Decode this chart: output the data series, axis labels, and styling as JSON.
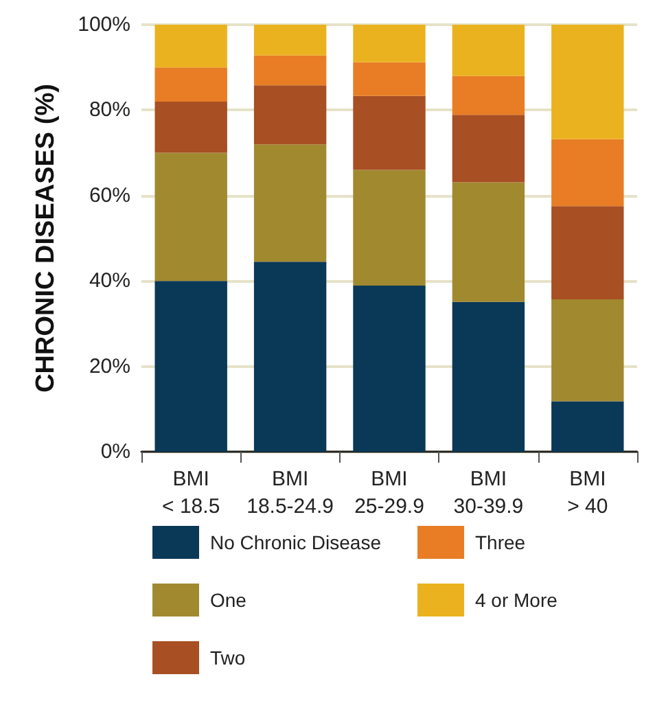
{
  "chart_data": {
    "type": "bar",
    "stacked": true,
    "ylabel": "CHRONIC DISEASES (%)",
    "categories": [
      "BMI\n< 18.5",
      "BMI\n18.5-24.9",
      "BMI\n25-29.9",
      "BMI\n30-39.9",
      "BMI\n> 40"
    ],
    "series": [
      {
        "name": "No Chronic Disease",
        "color": "#0a3857",
        "values": [
          40,
          44.5,
          38.9,
          35.1,
          11.8
        ]
      },
      {
        "name": "One",
        "color": "#a18930",
        "values": [
          30,
          27.5,
          27.1,
          28,
          23.9
        ]
      },
      {
        "name": "Two",
        "color": "#a84f24",
        "values": [
          12,
          13.8,
          17.3,
          15.8,
          21.8
        ]
      },
      {
        "name": "Three",
        "color": "#e87d25",
        "values": [
          8,
          7,
          7.9,
          9.1,
          15.7
        ]
      },
      {
        "name": "4 or More",
        "color": "#ebb220",
        "values": [
          10,
          7.2,
          8.8,
          12,
          26.8
        ]
      }
    ],
    "ylim": [
      0,
      100
    ],
    "yticks": [
      {
        "value": 0,
        "label": "0%"
      },
      {
        "value": 20,
        "label": "20%"
      },
      {
        "value": 40,
        "label": "40%"
      },
      {
        "value": 60,
        "label": "60%"
      },
      {
        "value": 80,
        "label": "80%"
      },
      {
        "value": 100,
        "label": "100%"
      }
    ],
    "grid": "y",
    "legend": "bottom"
  }
}
